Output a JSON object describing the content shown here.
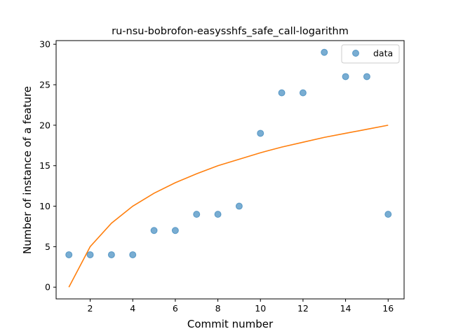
{
  "chart_data": {
    "type": "scatter",
    "title": "ru-nsu-bobrofon-easysshfs_safe_call-logarithm",
    "xlabel": "Commit number",
    "ylabel": "Number of instance of a feature",
    "xlim": [
      0.4,
      16.75
    ],
    "ylim": [
      -1.45,
      30.45
    ],
    "xticks": [
      2,
      4,
      6,
      8,
      10,
      12,
      14,
      16
    ],
    "yticks": [
      0,
      5,
      10,
      15,
      20,
      25,
      30
    ],
    "grid": false,
    "legend_placement": "top-right",
    "series": [
      {
        "name": "data",
        "kind": "scatter",
        "color": "#1f77b4",
        "x": [
          1,
          2,
          3,
          4,
          5,
          6,
          7,
          8,
          9,
          10,
          11,
          12,
          13,
          14,
          15,
          16
        ],
        "y": [
          4,
          4,
          4,
          4,
          7,
          7,
          9,
          9,
          10,
          19,
          24,
          24,
          29,
          26,
          26,
          9
        ]
      },
      {
        "name": "",
        "kind": "line",
        "color": "#ff7f0e",
        "x": [
          1,
          2,
          3,
          4,
          5,
          6,
          7,
          8,
          9,
          10,
          11,
          12,
          13,
          14,
          15,
          16
        ],
        "y": [
          0,
          5,
          7.9,
          10.0,
          11.6,
          12.9,
          14.0,
          15.0,
          15.8,
          16.6,
          17.3,
          17.9,
          18.5,
          19.0,
          19.5,
          20.0
        ]
      }
    ]
  }
}
